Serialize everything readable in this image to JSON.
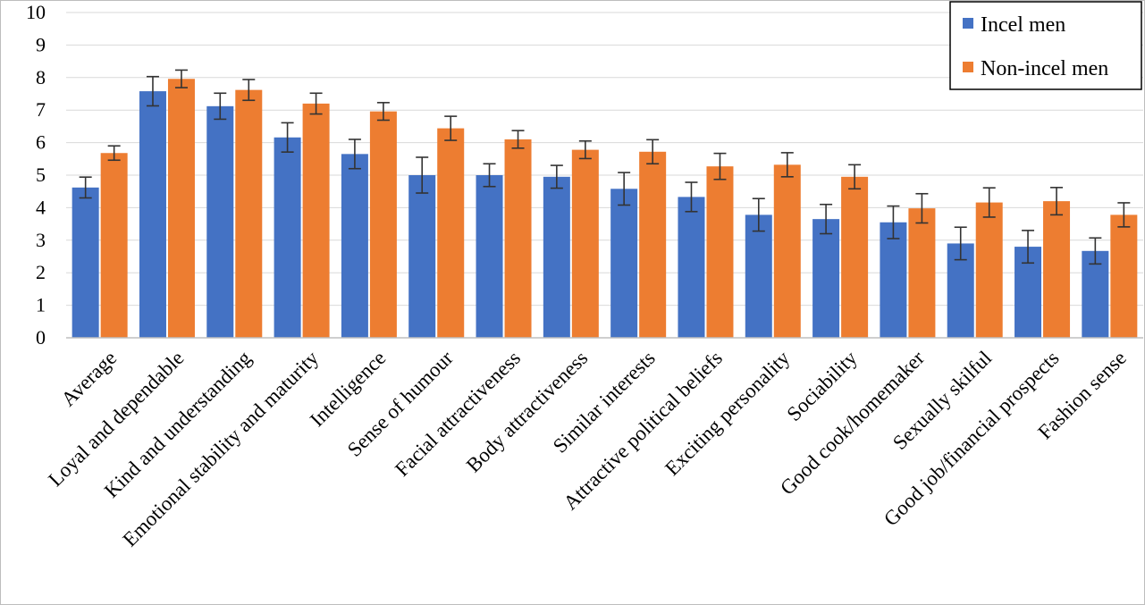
{
  "chart_data": {
    "type": "bar",
    "title": "",
    "xlabel": "",
    "ylabel": "",
    "ylim": [
      0,
      10
    ],
    "yticks": [
      0,
      1,
      2,
      3,
      4,
      5,
      6,
      7,
      8,
      9,
      10
    ],
    "grid": true,
    "legend_position": "top-right",
    "categories": [
      "Average",
      "Loyal and dependable",
      "Kind and understanding",
      "Emotional stability and maturity",
      "Intelligence",
      "Sense of humour",
      "Facial attractiveness",
      "Body attractiveness",
      "Similar interests",
      "Attractive political beliefs",
      "Exciting personality",
      "Sociability",
      "Good cook/homemaker",
      "Sexually skilful",
      "Good job/financial prospects",
      "Fashion sense"
    ],
    "series": [
      {
        "name": "Incel men",
        "color": "#4472c4",
        "values": [
          4.62,
          7.58,
          7.12,
          6.16,
          5.65,
          5.0,
          5.0,
          4.95,
          4.58,
          4.33,
          3.78,
          3.65,
          3.55,
          2.9,
          2.8,
          2.67
        ],
        "error": [
          0.32,
          0.45,
          0.4,
          0.45,
          0.45,
          0.55,
          0.35,
          0.35,
          0.5,
          0.45,
          0.5,
          0.45,
          0.5,
          0.5,
          0.5,
          0.4
        ]
      },
      {
        "name": "Non-incel men",
        "color": "#ed7d31",
        "values": [
          5.68,
          7.96,
          7.62,
          7.2,
          6.96,
          6.44,
          6.1,
          5.78,
          5.72,
          5.27,
          5.32,
          4.95,
          3.98,
          4.16,
          4.2,
          3.78
        ],
        "error": [
          0.22,
          0.27,
          0.32,
          0.32,
          0.27,
          0.37,
          0.27,
          0.27,
          0.37,
          0.4,
          0.37,
          0.37,
          0.45,
          0.45,
          0.42,
          0.37
        ]
      }
    ]
  }
}
